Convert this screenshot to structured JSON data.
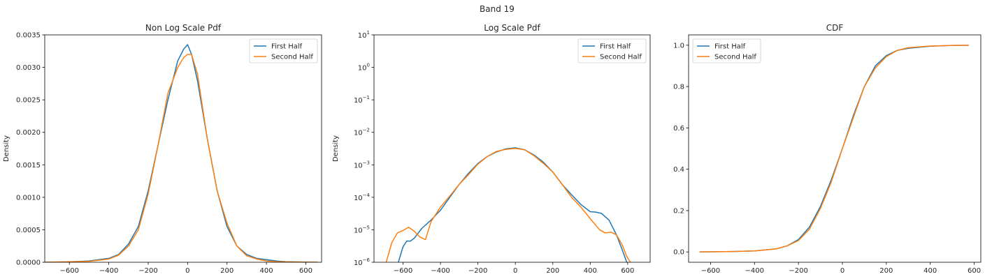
{
  "suptitle": "Band 19",
  "colors": {
    "first": "#1f77b4",
    "second": "#ff7f0e"
  },
  "chart_data": [
    {
      "type": "line",
      "title": "Non Log Scale Pdf",
      "ylabel": "Density",
      "xlim": [
        -725,
        680
      ],
      "ylim": [
        0,
        0.0035
      ],
      "xticks": [
        -600,
        -400,
        -200,
        0,
        200,
        400,
        600
      ],
      "xtick_labels": [
        "−600",
        "−400",
        "−200",
        "0",
        "200",
        "400",
        "600"
      ],
      "yticks": [
        0,
        0.0005,
        0.001,
        0.0015,
        0.002,
        0.0025,
        0.003,
        0.0035
      ],
      "ytick_labels": [
        "0.0000",
        "0.0005",
        "0.0010",
        "0.0015",
        "0.0020",
        "0.0025",
        "0.0030",
        "0.0035"
      ],
      "yscale": "linear",
      "legend": {
        "loc": "upper right",
        "entries": [
          "First Half",
          "Second Half"
        ]
      },
      "series": [
        {
          "name": "First Half",
          "x": [
            -730,
            -600,
            -500,
            -400,
            -350,
            -300,
            -250,
            -200,
            -150,
            -100,
            -50,
            -20,
            0,
            20,
            50,
            100,
            150,
            200,
            250,
            300,
            350,
            400,
            450,
            500,
            600,
            660
          ],
          "y": [
            0,
            5e-06,
            2e-05,
            6e-05,
            0.00012,
            0.00028,
            0.00055,
            0.0011,
            0.0018,
            0.0025,
            0.0031,
            0.00328,
            0.00335,
            0.0032,
            0.0028,
            0.0019,
            0.0011,
            0.00055,
            0.00025,
            0.00012,
            6e-05,
            4e-05,
            2e-05,
            8e-06,
            2e-06,
            0
          ]
        },
        {
          "name": "Second Half",
          "x": [
            -730,
            -600,
            -500,
            -400,
            -350,
            -300,
            -250,
            -200,
            -150,
            -100,
            -50,
            -20,
            0,
            20,
            50,
            100,
            150,
            200,
            250,
            300,
            350,
            400,
            450,
            500,
            600,
            660
          ],
          "y": [
            0,
            8e-06,
            1.5e-05,
            5e-05,
            0.00011,
            0.00025,
            0.0005,
            0.00105,
            0.0018,
            0.0026,
            0.003,
            0.00315,
            0.0032,
            0.0032,
            0.0029,
            0.0019,
            0.0011,
            0.0006,
            0.00025,
            0.0001,
            5e-05,
            2e-05,
            1e-05,
            5e-06,
            1e-06,
            0
          ]
        }
      ]
    },
    {
      "type": "line",
      "title": "Log Scale Pdf",
      "ylabel": "Density",
      "xlim": [
        -755,
        720
      ],
      "ylim": [
        1e-06,
        10
      ],
      "xticks": [
        -600,
        -400,
        -200,
        0,
        200,
        400,
        600
      ],
      "xtick_labels": [
        "−600",
        "−400",
        "−200",
        "0",
        "200",
        "400",
        "600"
      ],
      "yticks": [
        1e-06,
        1e-05,
        0.0001,
        0.001,
        0.01,
        0.1,
        1,
        10
      ],
      "ytick_labels": [
        "10^-6",
        "10^-5",
        "10^-4",
        "10^-3",
        "10^-2",
        "10^-1",
        "10^0",
        "10^1"
      ],
      "yscale": "log",
      "legend": {
        "loc": "upper right",
        "entries": [
          "First Half",
          "Second Half"
        ]
      },
      "series": [
        {
          "name": "First Half",
          "x": [
            -625,
            -600,
            -580,
            -560,
            -540,
            -500,
            -450,
            -400,
            -350,
            -300,
            -250,
            -200,
            -150,
            -100,
            -50,
            0,
            50,
            100,
            150,
            200,
            250,
            300,
            350,
            400,
            430,
            460,
            500,
            540,
            570,
            595
          ],
          "y": [
            1e-06,
            3e-06,
            4.5e-06,
            4.5e-06,
            5.5e-06,
            1.1e-05,
            2e-05,
            4e-05,
            0.0001,
            0.00025,
            0.00055,
            0.0011,
            0.0018,
            0.0025,
            0.0031,
            0.00335,
            0.0029,
            0.002,
            0.0012,
            0.0006,
            0.00025,
            0.00012,
            6e-05,
            3.6e-05,
            3.5e-05,
            3.2e-05,
            2e-05,
            7e-06,
            2.5e-06,
            1e-06
          ]
        },
        {
          "name": "Second Half",
          "x": [
            -690,
            -660,
            -630,
            -600,
            -570,
            -540,
            -510,
            -480,
            -450,
            -400,
            -350,
            -300,
            -250,
            -200,
            -150,
            -100,
            -50,
            0,
            50,
            100,
            150,
            200,
            250,
            300,
            350,
            400,
            450,
            480,
            510,
            540,
            570,
            595,
            615
          ],
          "y": [
            1e-06,
            4e-06,
            8e-06,
            9.5e-06,
            1.2e-05,
            9e-06,
            6e-06,
            5e-06,
            1.8e-05,
            5e-05,
            0.00011,
            0.00025,
            0.0005,
            0.00105,
            0.0018,
            0.0026,
            0.003,
            0.0032,
            0.0029,
            0.0019,
            0.0011,
            0.0006,
            0.00025,
            0.0001,
            5e-05,
            2.2e-05,
            1e-05,
            8e-06,
            8.5e-06,
            7e-06,
            3.5e-06,
            1.5e-06,
            1e-06
          ]
        }
      ]
    },
    {
      "type": "line",
      "title": "CDF",
      "ylabel": "",
      "xlim": [
        -700,
        630
      ],
      "ylim": [
        -0.05,
        1.05
      ],
      "xticks": [
        -600,
        -400,
        -200,
        0,
        200,
        400,
        600
      ],
      "xtick_labels": [
        "−600",
        "−400",
        "−200",
        "0",
        "200",
        "400",
        "600"
      ],
      "yticks": [
        0,
        0.2,
        0.4,
        0.6,
        0.8,
        1.0
      ],
      "ytick_labels": [
        "0.0",
        "0.2",
        "0.4",
        "0.6",
        "0.8",
        "1.0"
      ],
      "yscale": "linear",
      "legend": {
        "loc": "upper left",
        "entries": [
          "First Half",
          "Second Half"
        ]
      },
      "series": [
        {
          "name": "First Half",
          "x": [
            -650,
            -500,
            -400,
            -300,
            -250,
            -200,
            -150,
            -100,
            -50,
            0,
            50,
            100,
            150,
            200,
            250,
            300,
            400,
            500,
            575
          ],
          "y": [
            0,
            0.002,
            0.005,
            0.015,
            0.03,
            0.06,
            0.12,
            0.22,
            0.35,
            0.5,
            0.66,
            0.8,
            0.9,
            0.95,
            0.975,
            0.985,
            0.995,
            0.999,
            1.0
          ]
        },
        {
          "name": "Second Half",
          "x": [
            -650,
            -500,
            -400,
            -300,
            -250,
            -200,
            -150,
            -100,
            -50,
            0,
            50,
            100,
            150,
            200,
            250,
            300,
            400,
            500,
            575
          ],
          "y": [
            0,
            0.002,
            0.005,
            0.015,
            0.03,
            0.055,
            0.11,
            0.21,
            0.34,
            0.5,
            0.65,
            0.8,
            0.89,
            0.945,
            0.975,
            0.988,
            0.996,
            0.999,
            1.0
          ]
        }
      ]
    }
  ]
}
